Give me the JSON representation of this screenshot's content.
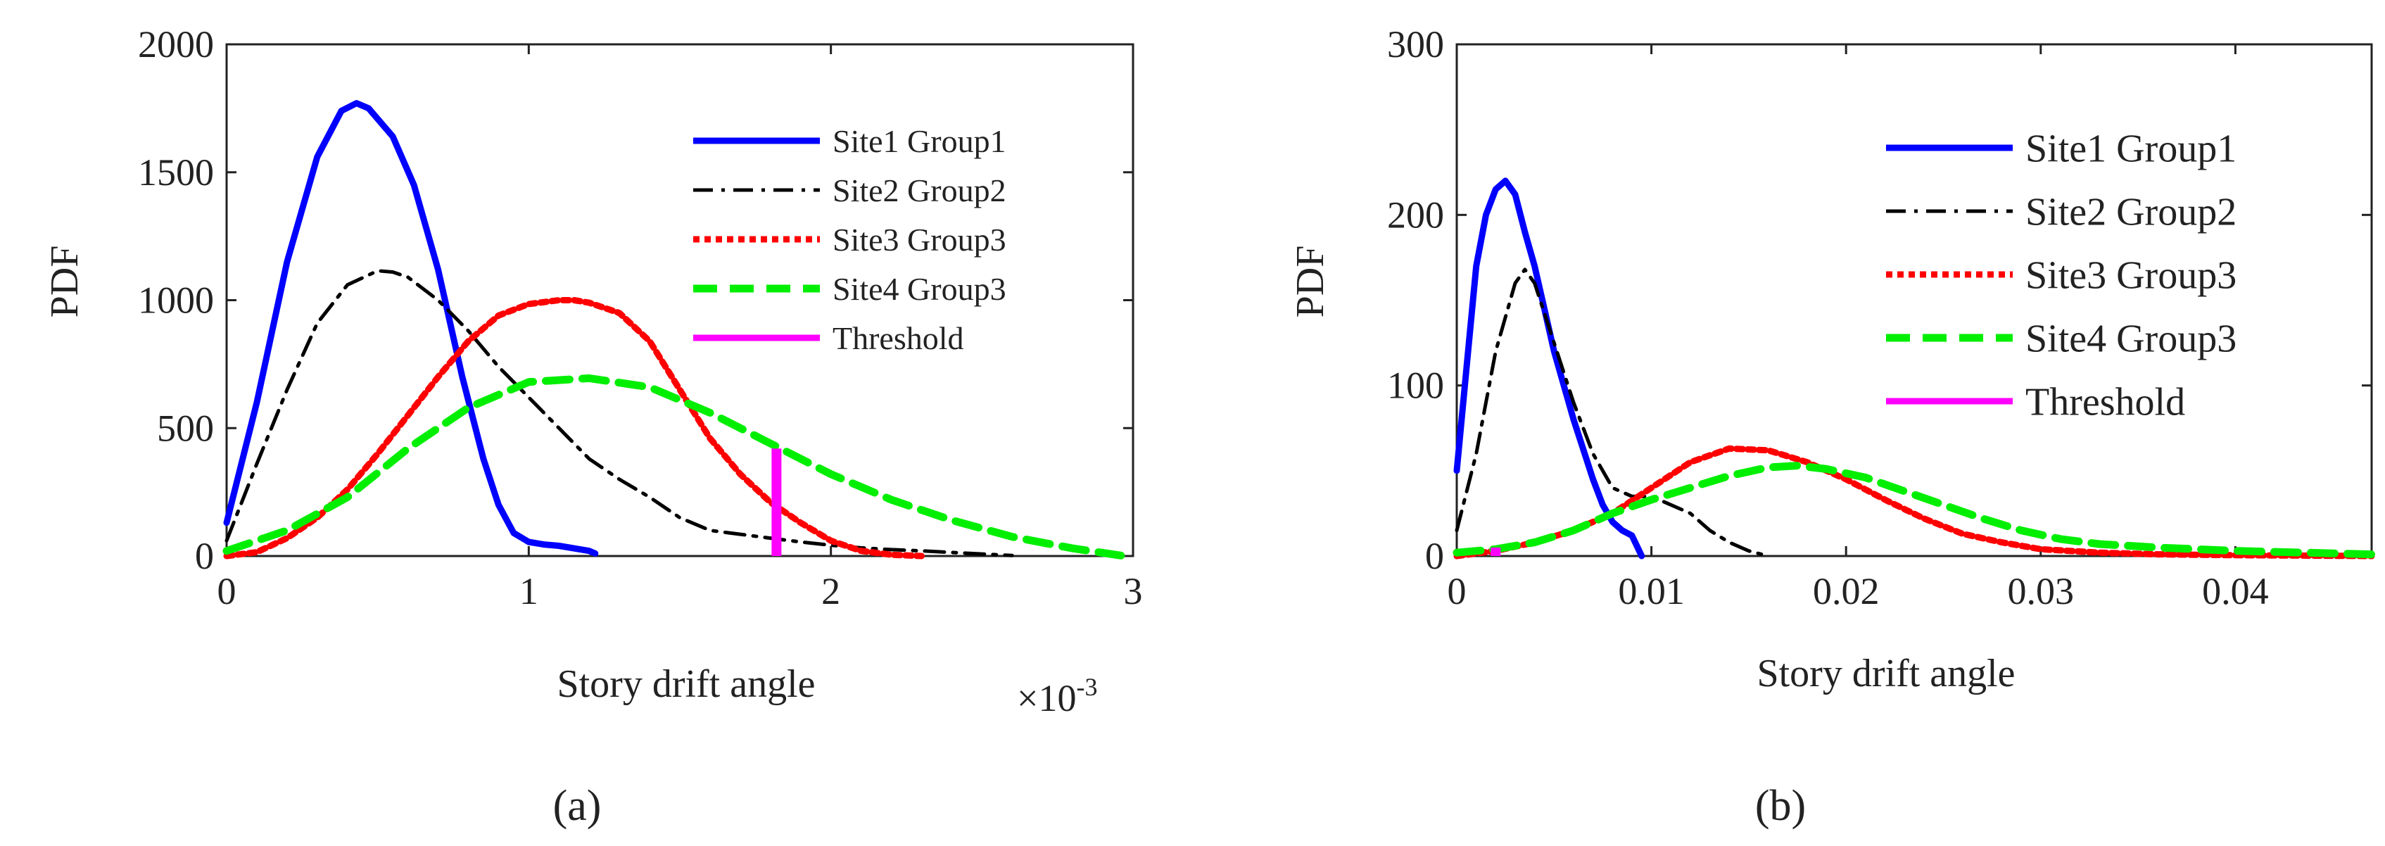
{
  "colors": {
    "site1": "#0000ff",
    "site2": "#000000",
    "site3": "#ff0000",
    "site4": "#00ee00",
    "threshold": "#ff00ff",
    "axis": "#222222",
    "background": "#ffffff"
  },
  "chart_data": [
    {
      "type": "line",
      "panel_label": "(a)",
      "xlabel": "Story drift angle",
      "ylabel": "PDF",
      "x_multiplier": "×10",
      "x_exponent": "-3",
      "xlim": [
        0,
        3
      ],
      "ylim": [
        0,
        2000
      ],
      "xticks": [
        0,
        1,
        2,
        3
      ],
      "xtick_labels": [
        "0",
        "1",
        "2",
        "3"
      ],
      "yticks": [
        0,
        500,
        1000,
        1500,
        2000
      ],
      "ytick_labels": [
        "0",
        "500",
        "1000",
        "1500",
        "2000"
      ],
      "legend_position": "top-right",
      "series": [
        {
          "name": "Site1 Group1",
          "style": "solid",
          "color_key": "site1",
          "x": [
            0,
            0.1,
            0.2,
            0.3,
            0.38,
            0.43,
            0.47,
            0.55,
            0.62,
            0.7,
            0.78,
            0.85,
            0.9,
            0.95,
            1.0,
            1.05,
            1.1,
            1.2,
            1.22
          ],
          "y": [
            130,
            600,
            1150,
            1560,
            1740,
            1770,
            1750,
            1640,
            1450,
            1120,
            700,
            380,
            200,
            90,
            55,
            45,
            40,
            20,
            10
          ]
        },
        {
          "name": "Site2 Group2",
          "style": "dashdot",
          "color_key": "site2",
          "x": [
            0,
            0.1,
            0.2,
            0.3,
            0.4,
            0.5,
            0.55,
            0.6,
            0.7,
            0.8,
            0.9,
            1.0,
            1.1,
            1.2,
            1.3,
            1.4,
            1.5,
            1.6,
            1.7,
            1.8,
            1.9,
            2.0,
            2.1,
            2.2,
            2.3,
            2.4,
            2.5,
            2.6
          ],
          "y": [
            60,
            360,
            650,
            910,
            1060,
            1115,
            1110,
            1090,
            1000,
            880,
            740,
            620,
            500,
            380,
            300,
            230,
            150,
            100,
            85,
            70,
            55,
            42,
            32,
            25,
            20,
            14,
            8,
            2
          ]
        },
        {
          "name": "Site3 Group3",
          "style": "dotted",
          "color_key": "site3",
          "x": [
            0,
            0.1,
            0.2,
            0.3,
            0.4,
            0.5,
            0.6,
            0.7,
            0.8,
            0.9,
            1.0,
            1.1,
            1.15,
            1.2,
            1.3,
            1.4,
            1.5,
            1.6,
            1.7,
            1.8,
            1.9,
            2.0,
            2.1,
            2.2,
            2.3
          ],
          "y": [
            0,
            15,
            70,
            150,
            260,
            400,
            550,
            700,
            840,
            940,
            985,
            1000,
            1000,
            990,
            950,
            840,
            650,
            460,
            320,
            210,
            130,
            60,
            20,
            5,
            0
          ]
        },
        {
          "name": "Site4 Group3",
          "style": "dashed",
          "color_key": "site4",
          "x": [
            0,
            0.2,
            0.4,
            0.6,
            0.8,
            1.0,
            1.2,
            1.4,
            1.6,
            1.8,
            2.0,
            2.2,
            2.4,
            2.6,
            2.8,
            2.96
          ],
          "y": [
            20,
            100,
            230,
            420,
            580,
            680,
            695,
            660,
            560,
            440,
            320,
            220,
            140,
            75,
            30,
            2
          ]
        },
        {
          "name": "Threshold",
          "style": "solid",
          "color_key": "threshold",
          "x": [
            1.82,
            1.82
          ],
          "y": [
            0,
            420
          ]
        }
      ]
    },
    {
      "type": "line",
      "panel_label": "(b)",
      "xlabel": "Story drift angle",
      "ylabel": "PDF",
      "xlim": [
        0,
        0.047
      ],
      "ylim": [
        0,
        300
      ],
      "xticks": [
        0,
        0.01,
        0.02,
        0.03,
        0.04
      ],
      "xtick_labels": [
        "0",
        "0.01",
        "0.02",
        "0.03",
        "0.04"
      ],
      "yticks": [
        0,
        100,
        200,
        300
      ],
      "ytick_labels": [
        "0",
        "100",
        "200",
        "300"
      ],
      "legend_position": "top-right",
      "series": [
        {
          "name": "Site1 Group1",
          "style": "solid",
          "color_key": "site1",
          "x": [
            0,
            0.0005,
            0.001,
            0.0015,
            0.002,
            0.0025,
            0.003,
            0.0035,
            0.004,
            0.005,
            0.006,
            0.007,
            0.0075,
            0.008,
            0.0085,
            0.009,
            0.0095
          ],
          "y": [
            50,
            110,
            170,
            200,
            215,
            220,
            212,
            190,
            170,
            120,
            80,
            45,
            30,
            20,
            15,
            12,
            0
          ]
        },
        {
          "name": "Site2 Group2",
          "style": "dashdot",
          "color_key": "site2",
          "x": [
            0,
            0.001,
            0.002,
            0.003,
            0.0035,
            0.004,
            0.005,
            0.006,
            0.007,
            0.008,
            0.009,
            0.01,
            0.011,
            0.012,
            0.013,
            0.014,
            0.015,
            0.016
          ],
          "y": [
            15,
            60,
            120,
            160,
            168,
            160,
            125,
            90,
            60,
            40,
            35,
            35,
            30,
            25,
            15,
            8,
            3,
            0
          ]
        },
        {
          "name": "Site3 Group3",
          "style": "dotted",
          "color_key": "site3",
          "x": [
            0,
            0.002,
            0.004,
            0.006,
            0.008,
            0.01,
            0.012,
            0.014,
            0.016,
            0.018,
            0.02,
            0.022,
            0.024,
            0.026,
            0.028,
            0.03,
            0.033,
            0.036,
            0.04,
            0.047
          ],
          "y": [
            0,
            3,
            8,
            15,
            25,
            40,
            55,
            63,
            62,
            55,
            45,
            33,
            22,
            13,
            8,
            4,
            2,
            1,
            0.5,
            0
          ]
        },
        {
          "name": "Site4 Group3",
          "style": "dashed",
          "color_key": "site4",
          "x": [
            0,
            0.002,
            0.004,
            0.006,
            0.008,
            0.01,
            0.012,
            0.014,
            0.016,
            0.0175,
            0.019,
            0.021,
            0.023,
            0.025,
            0.027,
            0.029,
            0.031,
            0.033,
            0.036,
            0.04,
            0.047
          ],
          "y": [
            2,
            4,
            8,
            15,
            25,
            33,
            40,
            47,
            52,
            53,
            51,
            46,
            38,
            30,
            22,
            15,
            10,
            7,
            5,
            3,
            1
          ]
        },
        {
          "name": "Threshold",
          "style": "solid",
          "color_key": "threshold",
          "x": [
            0.002,
            0.002
          ],
          "y": [
            0,
            5
          ]
        }
      ]
    }
  ]
}
